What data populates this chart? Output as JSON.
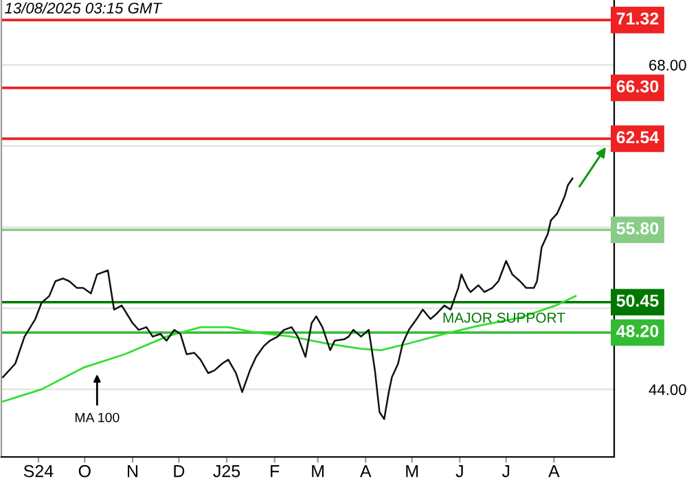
{
  "chart_data": {
    "type": "line",
    "annotations": [
      "13/08/2025 03:15 GMT",
      {
        "text": "MA 100",
        "x": "2024-10-09",
        "y": 45.4
      },
      "MAJOR SUPPORT"
    ],
    "series": [
      {
        "color": "#111111",
        "x": [
          "2024-08-09",
          "2024-08-17",
          "2024-08-23",
          "2024-08-30",
          "2024-09-03",
          "2024-09-08",
          "2024-09-12",
          "2024-09-17",
          "2024-09-21",
          "2024-09-26",
          "2024-09-30",
          "2024-10-05",
          "2024-10-09",
          "2024-10-16",
          "2024-10-20",
          "2024-10-25",
          "2024-11-01",
          "2024-11-05",
          "2024-11-10",
          "2024-11-14",
          "2024-11-19",
          "2024-11-23",
          "2024-11-28",
          "2024-12-02",
          "2024-12-06",
          "2024-12-11",
          "2024-12-15",
          "2024-12-20",
          "2024-12-24",
          "2024-12-29",
          "2025-01-02",
          "2025-01-07",
          "2025-01-11",
          "2025-01-16",
          "2025-01-20",
          "2025-01-25",
          "2025-01-29",
          "2025-02-03",
          "2025-02-07",
          "2025-02-12",
          "2025-02-16",
          "2025-02-21",
          "2025-02-25",
          "2025-02-28",
          "2025-03-04",
          "2025-03-09",
          "2025-03-12",
          "2025-03-18",
          "2025-03-21",
          "2025-03-24",
          "2025-03-29",
          "2025-04-03",
          "2025-04-07",
          "2025-04-10",
          "2025-04-13",
          "2025-04-16",
          "2025-04-18",
          "2025-04-22",
          "2025-04-25",
          "2025-04-29",
          "2025-05-04",
          "2025-05-08",
          "2025-05-13",
          "2025-05-17",
          "2025-05-22",
          "2025-05-26",
          "2025-05-31",
          "2025-06-02",
          "2025-06-06",
          "2025-06-08",
          "2025-06-13",
          "2025-06-17",
          "2025-06-22",
          "2025-06-26",
          "2025-07-01",
          "2025-07-05",
          "2025-07-10",
          "2025-07-14",
          "2025-07-19",
          "2025-07-21",
          "2025-07-24",
          "2025-07-28",
          "2025-07-30",
          "2025-08-03",
          "2025-08-05",
          "2025-08-08",
          "2025-08-10",
          "2025-08-13"
        ],
        "values": [
          44.9,
          45.9,
          47.9,
          49.2,
          50.4,
          50.9,
          52.0,
          52.2,
          52.0,
          51.5,
          51.5,
          51.1,
          52.5,
          52.8,
          49.9,
          50.2,
          48.9,
          48.4,
          48.6,
          47.9,
          48.1,
          47.6,
          48.4,
          48.1,
          46.6,
          46.7,
          46.2,
          45.2,
          45.4,
          45.9,
          46.2,
          45.2,
          43.8,
          45.4,
          46.4,
          47.2,
          47.6,
          47.9,
          48.4,
          48.6,
          47.9,
          46.4,
          48.9,
          49.4,
          48.6,
          46.9,
          47.6,
          47.7,
          47.9,
          48.4,
          47.9,
          48.4,
          45.4,
          42.3,
          41.8,
          43.8,
          44.9,
          45.9,
          47.4,
          48.4,
          49.2,
          49.9,
          49.2,
          49.6,
          50.2,
          49.9,
          51.5,
          52.5,
          51.5,
          51.2,
          51.7,
          51.2,
          51.5,
          52.0,
          53.5,
          52.5,
          52.0,
          51.5,
          51.5,
          52.0,
          54.5,
          55.5,
          56.5,
          57.0,
          57.5,
          58.3,
          59.1,
          59.6
        ]
      },
      {
        "color": "#33dd33",
        "x": [
          "2024-08-09",
          "2024-09-03",
          "2024-09-30",
          "2024-10-27",
          "2024-11-23",
          "2024-12-15",
          "2025-01-02",
          "2025-01-20",
          "2025-02-12",
          "2025-03-06",
          "2025-03-29",
          "2025-04-11",
          "2025-04-29",
          "2025-05-22",
          "2025-06-13",
          "2025-07-10",
          "2025-08-02",
          "2025-08-15"
        ],
        "values": [
          43.1,
          44.0,
          45.6,
          46.6,
          47.9,
          48.6,
          48.6,
          48.2,
          47.9,
          47.4,
          47.0,
          46.9,
          47.4,
          48.1,
          48.7,
          49.3,
          50.2,
          50.9
        ]
      }
    ],
    "ref_lines": [
      {
        "axis": "y",
        "value": 71.32,
        "color": "#ee2222",
        "label": "71.32"
      },
      {
        "axis": "y",
        "value": 66.3,
        "color": "#ee2222",
        "label": "66.30"
      },
      {
        "axis": "y",
        "value": 62.54,
        "color": "#ee2222",
        "label": "62.54"
      },
      {
        "axis": "y",
        "value": 55.8,
        "color": "#88cc88",
        "label": "55.80"
      },
      {
        "axis": "y",
        "value": 50.45,
        "color": "#007700",
        "label": "50.45"
      },
      {
        "axis": "y",
        "value": 48.2,
        "color": "#33bb33",
        "label": "48.20"
      }
    ],
    "xlim": [
      "2024-08-08",
      "2025-09-09"
    ],
    "xticks": [
      {
        "value": "2024-09-01",
        "label": "S24"
      },
      {
        "value": "2024-10-01",
        "label": "O"
      },
      {
        "value": "2024-11-01",
        "label": "N"
      },
      {
        "value": "2024-12-01",
        "label": "D"
      },
      {
        "value": "2025-01-01",
        "label": "J25"
      },
      {
        "value": "2025-02-01",
        "label": "F"
      },
      {
        "value": "2025-03-01",
        "label": "M"
      },
      {
        "value": "2025-04-01",
        "label": "A"
      },
      {
        "value": "2025-05-01",
        "label": "M"
      },
      {
        "value": "2025-06-01",
        "label": "J"
      },
      {
        "value": "2025-07-01",
        "label": "J"
      },
      {
        "value": "2025-08-01",
        "label": "A"
      }
    ],
    "ylim": [
      39.0,
      72.8
    ],
    "yticks": [
      {
        "value": 44,
        "label": "44.00"
      },
      {
        "value": 50,
        "label": null
      },
      {
        "value": 56,
        "label": null
      },
      {
        "value": 62,
        "label": null
      },
      {
        "value": 68,
        "label": "68.00"
      }
    ],
    "grid": "y",
    "marker": "none",
    "line_style": "solid"
  }
}
